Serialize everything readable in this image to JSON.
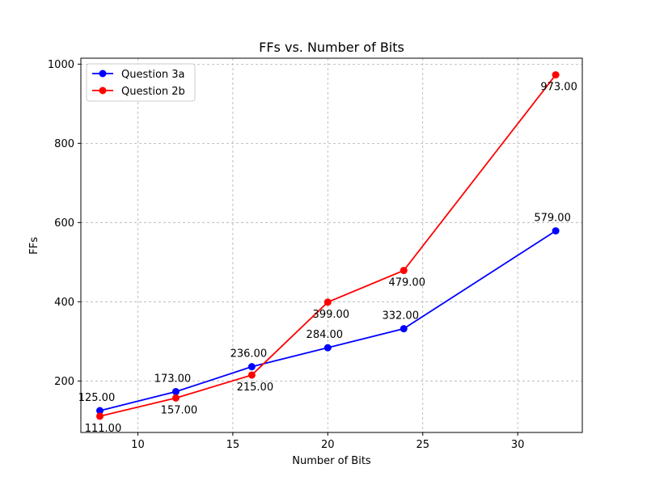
{
  "chart_data": {
    "type": "line",
    "title": "FFs vs. Number of Bits",
    "xlabel": "Number of Bits",
    "ylabel": "FFs",
    "xlim": [
      7,
      33.4
    ],
    "ylim": [
      70,
      1015
    ],
    "xticks": [
      10,
      15,
      20,
      25,
      30
    ],
    "yticks": [
      200,
      400,
      600,
      800,
      1000
    ],
    "grid": true,
    "legend_position": "top-left",
    "x": [
      8,
      12,
      16,
      20,
      24,
      32
    ],
    "series": [
      {
        "name": "Question 3a",
        "color": "#0000ff",
        "values": [
          125,
          173,
          236,
          284,
          332,
          579
        ],
        "labels": [
          "125.00",
          "173.00",
          "236.00",
          "284.00",
          "332.00",
          "579.00"
        ],
        "label_position": "above"
      },
      {
        "name": "Question 2b",
        "color": "#ff0000",
        "values": [
          111,
          157,
          215,
          399,
          479,
          973
        ],
        "labels": [
          "111.00",
          "157.00",
          "215.00",
          "399.00",
          "479.00",
          "973.00"
        ],
        "label_position": "below"
      }
    ]
  }
}
